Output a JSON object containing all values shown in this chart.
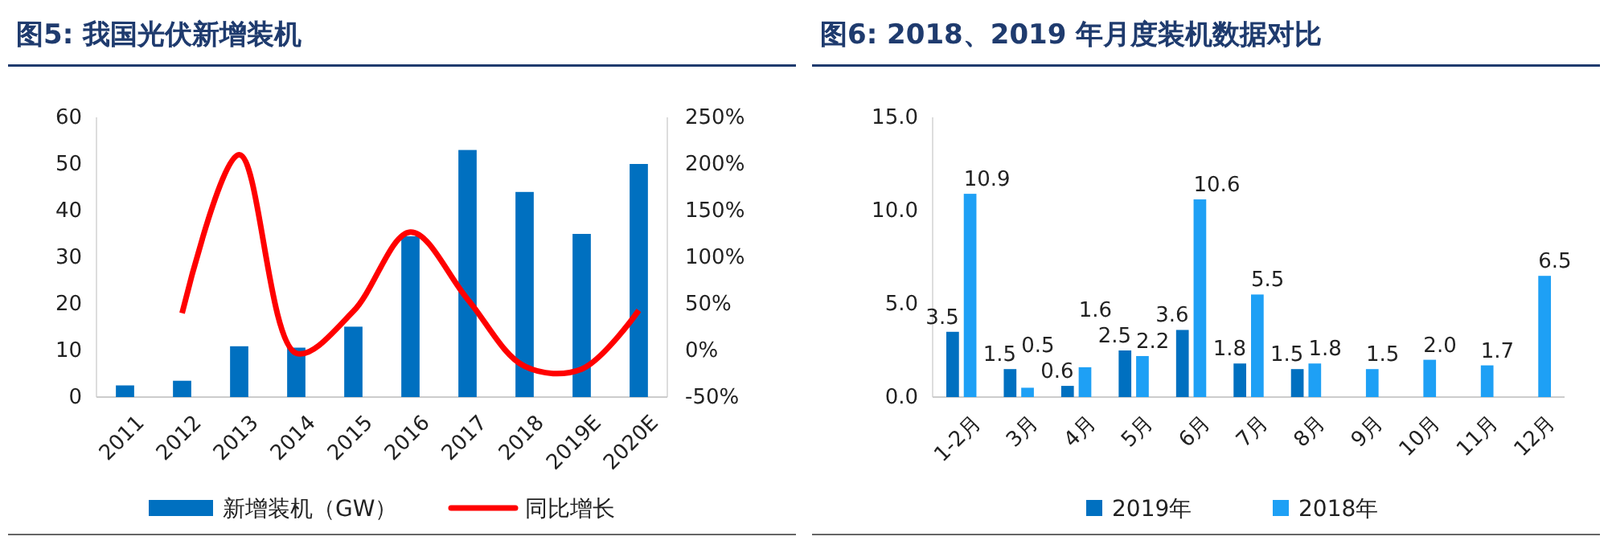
{
  "chart_data": [
    {
      "type": "bar",
      "title": "图5:  我国光伏新增装机",
      "categories": [
        "2011",
        "2012",
        "2013",
        "2014",
        "2015",
        "2016",
        "2017",
        "2018",
        "2019E",
        "2020E"
      ],
      "series": [
        {
          "name": "新增装机（GW）",
          "color": "#0070c0",
          "values": [
            2.5,
            3.5,
            10.9,
            10.6,
            15.1,
            34.5,
            53,
            44,
            35,
            50
          ]
        },
        {
          "name": "同比增长",
          "type": "line",
          "axis": "y2",
          "color": "#ff0000",
          "values": [
            null,
            40,
            210,
            -3,
            42,
            127,
            55,
            -17,
            -20,
            43
          ]
        }
      ],
      "ylim": [
        0,
        60
      ],
      "yticks": [
        0,
        10,
        20,
        30,
        40,
        50,
        60
      ],
      "y2lim": [
        -50,
        250
      ],
      "y2ticks": [
        {
          "value": -50,
          "label": "-50%"
        },
        {
          "value": 0,
          "label": "0%"
        },
        {
          "value": 50,
          "label": "50%"
        },
        {
          "value": 100,
          "label": "100%"
        },
        {
          "value": 150,
          "label": "150%"
        },
        {
          "value": 200,
          "label": "200%"
        },
        {
          "value": 250,
          "label": "250%"
        }
      ],
      "legend": "bottom",
      "marker": "none"
    },
    {
      "type": "bar",
      "title": "图6:  2018、2019 年月度装机数据对比",
      "categories": [
        "1-2月",
        "3月",
        "4月",
        "5月",
        "6月",
        "7月",
        "8月",
        "9月",
        "10月",
        "11月",
        "12月"
      ],
      "series": [
        {
          "name": "2019年",
          "color": "#0070c0",
          "values": [
            3.5,
            1.5,
            0.6,
            2.5,
            3.6,
            1.8,
            1.5,
            null,
            null,
            null,
            null
          ],
          "value_labels": [
            "3.5",
            "1.5",
            "0.6",
            "2.5",
            "3.6",
            "1.8",
            "1.5",
            null,
            null,
            null,
            null
          ]
        },
        {
          "name": "2018年",
          "color": "#1ea0f5",
          "values": [
            10.9,
            0.5,
            1.6,
            2.2,
            10.6,
            5.5,
            1.8,
            1.5,
            2.0,
            1.7,
            6.5
          ],
          "value_labels": [
            "10.9",
            "0.5",
            "1.6",
            "2.2",
            "10.6",
            "5.5",
            "1.8",
            "1.5",
            "2.0",
            "1.7",
            "6.5"
          ]
        }
      ],
      "ylim": [
        0,
        15
      ],
      "yticks": [
        {
          "value": 0,
          "label": "0.0"
        },
        {
          "value": 5,
          "label": "5.0"
        },
        {
          "value": 10,
          "label": "10.0"
        },
        {
          "value": 15,
          "label": "15.0"
        }
      ],
      "legend": "bottom"
    }
  ]
}
